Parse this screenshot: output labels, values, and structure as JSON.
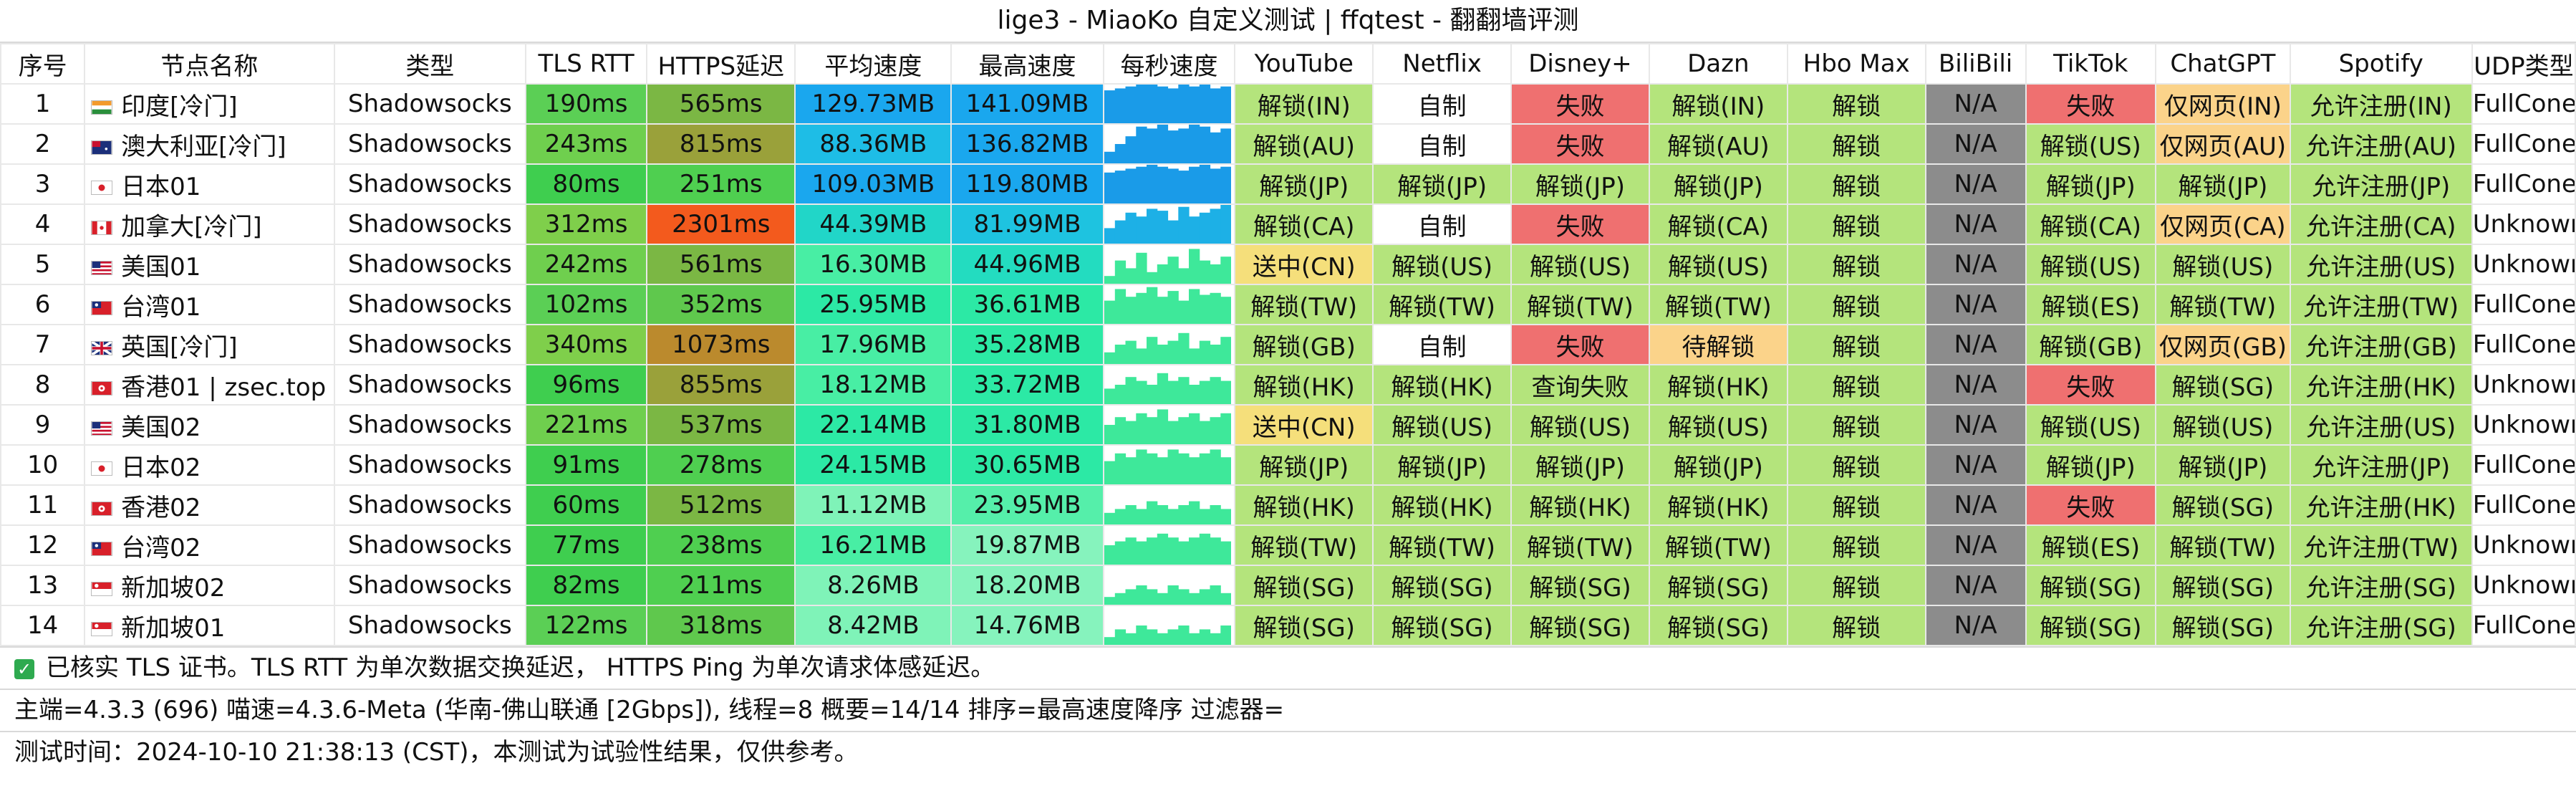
{
  "title": "lige3 - MiaoKo 自定义测试 | ffqtest - 翻翻墙评测",
  "columns": [
    "序号",
    "节点名称",
    "类型",
    "TLS RTT",
    "HTTPS延迟",
    "平均速度",
    "最高速度",
    "每秒速度",
    "YouTube",
    "Netflix",
    "Disney+",
    "Dazn",
    "Hbo Max",
    "BiliBili",
    "TikTok",
    "ChatGPT",
    "Spotify",
    "UDP类型"
  ],
  "colors": {
    "unlock": "#b4e47c",
    "self_made": "#ffffff",
    "fail": "#ef7070",
    "web_only": "#fbd38a",
    "na": "#8c8c8c",
    "sending": "#f5df7b",
    "pending": "#fbd38a"
  },
  "rows": [
    {
      "idx": "1",
      "flag": "india-flag-icon",
      "name": "印度[冷门]",
      "type": "Shadowsocks",
      "tls": "190ms",
      "https": "565ms",
      "avg": "129.73MB",
      "max": "141.09MB",
      "speed": [
        0.85,
        0.9,
        0.95,
        1,
        1,
        0.95,
        0.9,
        1,
        0.95,
        1,
        0.9,
        0.95
      ],
      "youtube": "解锁(IN)",
      "netflix": "自制",
      "disney": "失败",
      "dazn": "解锁(IN)",
      "hbo": "解锁",
      "bili": "N/A",
      "tiktok": "失败",
      "chatgpt": "仅网页(IN)",
      "spotify": "允许注册(IN)",
      "udp": "FullCone"
    },
    {
      "idx": "2",
      "flag": "australia-flag-icon",
      "name": "澳大利亚[冷门]",
      "type": "Shadowsocks",
      "tls": "243ms",
      "https": "815ms",
      "avg": "88.36MB",
      "max": "136.82MB",
      "speed": [
        0.3,
        0.5,
        0.7,
        0.95,
        0.9,
        1,
        0.85,
        0.9,
        1,
        0.95,
        0.8,
        0.9
      ],
      "youtube": "解锁(AU)",
      "netflix": "自制",
      "disney": "失败",
      "dazn": "解锁(AU)",
      "hbo": "解锁",
      "bili": "N/A",
      "tiktok": "解锁(US)",
      "chatgpt": "仅网页(AU)",
      "spotify": "允许注册(AU)",
      "udp": "FullCone"
    },
    {
      "idx": "3",
      "flag": "japan-flag-icon",
      "name": "日本01",
      "type": "Shadowsocks",
      "tls": "80ms",
      "https": "251ms",
      "avg": "109.03MB",
      "max": "119.80MB",
      "speed": [
        0.8,
        0.85,
        0.9,
        0.95,
        1,
        0.95,
        0.9,
        0.85,
        0.95,
        1,
        0.9,
        0.95
      ],
      "youtube": "解锁(JP)",
      "netflix": "解锁(JP)",
      "disney": "解锁(JP)",
      "dazn": "解锁(JP)",
      "hbo": "解锁",
      "bili": "N/A",
      "tiktok": "解锁(JP)",
      "chatgpt": "解锁(JP)",
      "spotify": "允许注册(JP)",
      "udp": "FullCone"
    },
    {
      "idx": "4",
      "flag": "canada-flag-icon",
      "name": "加拿大[冷门]",
      "type": "Shadowsocks",
      "tls": "312ms",
      "https": "2301ms",
      "avg": "44.39MB",
      "max": "81.99MB",
      "speed": [
        0.4,
        0.6,
        0.8,
        0.7,
        0.9,
        0.85,
        0.6,
        0.95,
        0.7,
        0.8,
        0.9,
        1
      ],
      "youtube": "解锁(CA)",
      "netflix": "自制",
      "disney": "失败",
      "dazn": "解锁(CA)",
      "hbo": "解锁",
      "bili": "N/A",
      "tiktok": "解锁(CA)",
      "chatgpt": "仅网页(CA)",
      "spotify": "允许注册(CA)",
      "udp": "Unknown"
    },
    {
      "idx": "5",
      "flag": "usa-flag-icon",
      "name": "美国01",
      "type": "Shadowsocks",
      "tls": "242ms",
      "https": "561ms",
      "avg": "16.30MB",
      "max": "44.96MB",
      "speed": [
        0.2,
        0.6,
        0.4,
        0.8,
        0.3,
        0.5,
        0.7,
        0.4,
        0.9,
        0.6,
        0.5,
        0.7
      ],
      "youtube": "送中(CN)",
      "netflix": "解锁(US)",
      "disney": "解锁(US)",
      "dazn": "解锁(US)",
      "hbo": "解锁",
      "bili": "N/A",
      "tiktok": "解锁(US)",
      "chatgpt": "解锁(US)",
      "spotify": "允许注册(US)",
      "udp": "Unknown"
    },
    {
      "idx": "6",
      "flag": "taiwan-flag-icon",
      "name": "台湾01",
      "type": "Shadowsocks",
      "tls": "102ms",
      "https": "352ms",
      "avg": "25.95MB",
      "max": "36.61MB",
      "speed": [
        0.6,
        0.9,
        0.7,
        0.8,
        0.95,
        0.7,
        0.85,
        0.6,
        0.9,
        0.75,
        0.8,
        0.7
      ],
      "youtube": "解锁(TW)",
      "netflix": "解锁(TW)",
      "disney": "解锁(TW)",
      "dazn": "解锁(TW)",
      "hbo": "解锁",
      "bili": "N/A",
      "tiktok": "解锁(ES)",
      "chatgpt": "解锁(TW)",
      "spotify": "允许注册(TW)",
      "udp": "FullCone"
    },
    {
      "idx": "7",
      "flag": "uk-flag-icon",
      "name": "英国[冷门]",
      "type": "Shadowsocks",
      "tls": "340ms",
      "https": "1073ms",
      "avg": "17.96MB",
      "max": "35.28MB",
      "speed": [
        0.3,
        0.5,
        0.6,
        0.4,
        0.7,
        0.5,
        0.6,
        0.8,
        0.4,
        0.6,
        0.5,
        0.7
      ],
      "youtube": "解锁(GB)",
      "netflix": "自制",
      "disney": "失败",
      "dazn": "待解锁",
      "hbo": "解锁",
      "bili": "N/A",
      "tiktok": "解锁(GB)",
      "chatgpt": "仅网页(GB)",
      "spotify": "允许注册(GB)",
      "udp": "FullCone"
    },
    {
      "idx": "8",
      "flag": "hongkong-flag-icon",
      "name": "香港01 | zsec.top",
      "type": "Shadowsocks",
      "tls": "96ms",
      "https": "855ms",
      "avg": "18.12MB",
      "max": "33.72MB",
      "speed": [
        0.4,
        0.5,
        0.7,
        0.6,
        0.5,
        0.8,
        0.6,
        0.7,
        0.5,
        0.6,
        0.7,
        0.6
      ],
      "youtube": "解锁(HK)",
      "netflix": "解锁(HK)",
      "disney": "查询失败",
      "dazn": "解锁(HK)",
      "hbo": "解锁",
      "bili": "N/A",
      "tiktok": "失败",
      "chatgpt": "解锁(SG)",
      "spotify": "允许注册(HK)",
      "udp": "Unknown"
    },
    {
      "idx": "9",
      "flag": "usa-flag-icon",
      "name": "美国02",
      "type": "Shadowsocks",
      "tls": "221ms",
      "https": "537ms",
      "avg": "22.14MB",
      "max": "31.80MB",
      "speed": [
        0.5,
        0.7,
        0.6,
        0.8,
        0.7,
        0.9,
        0.6,
        0.7,
        0.8,
        0.6,
        0.7,
        0.8
      ],
      "youtube": "送中(CN)",
      "netflix": "解锁(US)",
      "disney": "解锁(US)",
      "dazn": "解锁(US)",
      "hbo": "解锁",
      "bili": "N/A",
      "tiktok": "解锁(US)",
      "chatgpt": "解锁(US)",
      "spotify": "允许注册(US)",
      "udp": "Unknown"
    },
    {
      "idx": "10",
      "flag": "japan-flag-icon",
      "name": "日本02",
      "type": "Shadowsocks",
      "tls": "91ms",
      "https": "278ms",
      "avg": "24.15MB",
      "max": "30.65MB",
      "speed": [
        0.6,
        0.8,
        0.7,
        0.9,
        0.8,
        0.7,
        0.9,
        0.8,
        0.7,
        0.8,
        0.9,
        0.7
      ],
      "youtube": "解锁(JP)",
      "netflix": "解锁(JP)",
      "disney": "解锁(JP)",
      "dazn": "解锁(JP)",
      "hbo": "解锁",
      "bili": "N/A",
      "tiktok": "解锁(JP)",
      "chatgpt": "解锁(JP)",
      "spotify": "允许注册(JP)",
      "udp": "FullCone"
    },
    {
      "idx": "11",
      "flag": "hongkong-flag-icon",
      "name": "香港02",
      "type": "Shadowsocks",
      "tls": "60ms",
      "https": "512ms",
      "avg": "11.12MB",
      "max": "23.95MB",
      "speed": [
        0.3,
        0.4,
        0.5,
        0.4,
        0.6,
        0.5,
        0.4,
        0.5,
        0.6,
        0.4,
        0.5,
        0.4
      ],
      "youtube": "解锁(HK)",
      "netflix": "解锁(HK)",
      "disney": "解锁(HK)",
      "dazn": "解锁(HK)",
      "hbo": "解锁",
      "bili": "N/A",
      "tiktok": "失败",
      "chatgpt": "解锁(SG)",
      "spotify": "允许注册(HK)",
      "udp": "FullCone"
    },
    {
      "idx": "12",
      "flag": "taiwan-flag-icon",
      "name": "台湾02",
      "type": "Shadowsocks",
      "tls": "77ms",
      "https": "238ms",
      "avg": "16.21MB",
      "max": "19.87MB",
      "speed": [
        0.5,
        0.6,
        0.7,
        0.6,
        0.7,
        0.8,
        0.7,
        0.6,
        0.7,
        0.8,
        0.7,
        0.6
      ],
      "youtube": "解锁(TW)",
      "netflix": "解锁(TW)",
      "disney": "解锁(TW)",
      "dazn": "解锁(TW)",
      "hbo": "解锁",
      "bili": "N/A",
      "tiktok": "解锁(ES)",
      "chatgpt": "解锁(TW)",
      "spotify": "允许注册(TW)",
      "udp": "Unknown"
    },
    {
      "idx": "13",
      "flag": "singapore-flag-icon",
      "name": "新加坡02",
      "type": "Shadowsocks",
      "tls": "82ms",
      "https": "211ms",
      "avg": "8.26MB",
      "max": "18.20MB",
      "speed": [
        0.2,
        0.3,
        0.4,
        0.5,
        0.4,
        0.3,
        0.5,
        0.4,
        0.3,
        0.4,
        0.5,
        0.3
      ],
      "youtube": "解锁(SG)",
      "netflix": "解锁(SG)",
      "disney": "解锁(SG)",
      "dazn": "解锁(SG)",
      "hbo": "解锁",
      "bili": "N/A",
      "tiktok": "解锁(SG)",
      "chatgpt": "解锁(SG)",
      "spotify": "允许注册(SG)",
      "udp": "Unknown"
    },
    {
      "idx": "14",
      "flag": "singapore-flag-icon",
      "name": "新加坡01",
      "type": "Shadowsocks",
      "tls": "122ms",
      "https": "318ms",
      "avg": "8.42MB",
      "max": "14.76MB",
      "speed": [
        0.2,
        0.4,
        0.3,
        0.5,
        0.4,
        0.3,
        0.4,
        0.5,
        0.3,
        0.4,
        0.3,
        0.5
      ],
      "youtube": "解锁(SG)",
      "netflix": "解锁(SG)",
      "disney": "解锁(SG)",
      "dazn": "解锁(SG)",
      "hbo": "解锁",
      "bili": "N/A",
      "tiktok": "解锁(SG)",
      "chatgpt": "解锁(SG)",
      "spotify": "允许注册(SG)",
      "udp": "FullCone"
    }
  ],
  "footer": {
    "line1": "已核实 TLS 证书。TLS RTT 为单次数据交换延迟， HTTPS Ping 为单次请求体感延迟。",
    "line2": "主端=4.3.3 (696) 喵速=4.3.6-Meta (华南-佛山联通 [2Gbps]), 线程=8 概要=14/14 排序=最高速度降序 过滤器=",
    "line3": "测试时间：2024-10-10 21:38:13 (CST)，本测试为试验性结果，仅供参考。"
  }
}
